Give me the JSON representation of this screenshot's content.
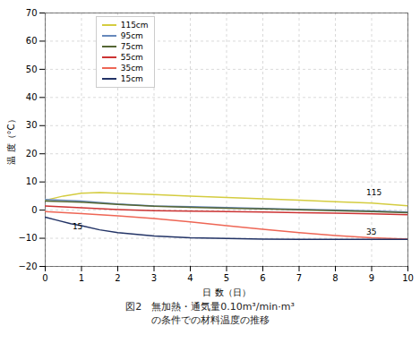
{
  "chart_data": {
    "type": "line",
    "title": "図2　無加熱・通気量0.10m³/min·m³",
    "subtitle": "の条件での材料温度の推移",
    "xlabel": "日 数（日）",
    "ylabel": "温 度（°C）",
    "xlim": [
      0,
      10
    ],
    "ylim": [
      -20,
      70
    ],
    "xticks": [
      0,
      1,
      2,
      3,
      4,
      5,
      6,
      7,
      8,
      9,
      10
    ],
    "yticks": [
      -20,
      -10,
      0,
      10,
      20,
      30,
      40,
      50,
      60,
      70
    ],
    "grid": true,
    "legend": "upper left",
    "series": [
      {
        "name": "115cm",
        "color": "#d4cc40",
        "x": [
          0,
          0.5,
          1,
          1.5,
          2,
          3,
          4,
          5,
          6,
          7,
          8,
          9,
          10
        ],
        "values": [
          3.5,
          5.0,
          6.0,
          6.2,
          6.0,
          5.5,
          5.0,
          4.5,
          4.0,
          3.5,
          3.0,
          2.5,
          1.5
        ]
      },
      {
        "name": "95cm",
        "color": "#6688bb",
        "x": [
          0,
          1,
          2,
          3,
          4,
          5,
          6,
          7,
          8,
          9,
          10
        ],
        "values": [
          3.8,
          3.2,
          2.2,
          1.5,
          1.2,
          0.9,
          0.6,
          0.3,
          0.0,
          -0.3,
          -0.7
        ]
      },
      {
        "name": "75cm",
        "color": "#556633",
        "x": [
          0,
          1,
          2,
          3,
          4,
          5,
          6,
          7,
          8,
          9,
          10
        ],
        "values": [
          3.2,
          2.8,
          2.0,
          1.4,
          1.0,
          0.7,
          0.4,
          0.1,
          -0.2,
          -0.5,
          -0.9
        ]
      },
      {
        "name": "55cm",
        "color": "#cc3333",
        "x": [
          0,
          1,
          2,
          3,
          4,
          5,
          6,
          7,
          8,
          9,
          10
        ],
        "values": [
          1.5,
          0.8,
          0.2,
          -0.2,
          -0.4,
          -0.5,
          -0.7,
          -0.9,
          -1.1,
          -1.3,
          -1.6
        ]
      },
      {
        "name": "35cm",
        "color": "#ee6655",
        "x": [
          0,
          1,
          2,
          3,
          4,
          5,
          6,
          7,
          8,
          9,
          10
        ],
        "values": [
          -0.5,
          -1.2,
          -2.0,
          -3.0,
          -4.2,
          -5.5,
          -6.8,
          -8.0,
          -9.0,
          -9.8,
          -10.3
        ]
      },
      {
        "name": "15cm",
        "color": "#223366",
        "x": [
          0,
          0.3,
          0.7,
          1,
          1.5,
          2,
          3,
          4,
          5,
          6,
          7,
          8,
          9,
          10
        ],
        "values": [
          -2.5,
          -3.5,
          -4.8,
          -5.5,
          -7.0,
          -8.0,
          -9.2,
          -9.8,
          -10.1,
          -10.3,
          -10.4,
          -10.4,
          -10.4,
          -10.4
        ]
      }
    ],
    "annotations": [
      {
        "text": "115",
        "x": 8.85,
        "y": 5.2
      },
      {
        "text": "35",
        "x": 8.85,
        "y": -8.8
      },
      {
        "text": "15",
        "x": 0.75,
        "y": -6.8
      }
    ]
  }
}
